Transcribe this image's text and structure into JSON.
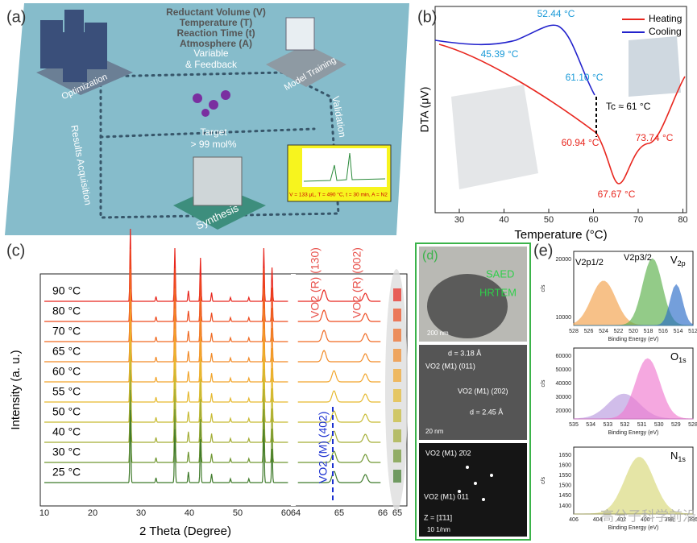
{
  "panel_a": {
    "label": "(a)",
    "parameters": [
      "Reductant Volume (V)",
      "Temperature (T)",
      "Reaction Time (t)",
      "Atmosphere (A)"
    ],
    "feedback": [
      "Variable",
      "& Feedback"
    ],
    "nodes": [
      "Optimization",
      "Model Training",
      "Validation",
      "Synthesis",
      "Results Acquisition"
    ],
    "target": [
      "Target",
      "> 99 mol%"
    ],
    "inset_caption": "V = 133 μL, T = 490 °C, t = 30 min, A = N2"
  },
  "panel_b": {
    "label": "(b)",
    "legend": [
      "Heating",
      "Cooling"
    ],
    "annotations": [
      "52.44 °C",
      "45.39 °C",
      "61.10 °C",
      "Tc ≈ 61 °C",
      "60.94 °C",
      "73.74 °C",
      "67.67 °C"
    ],
    "y_label": "DTA (μV)",
    "x_label": "Temperature (°C)",
    "x_ticks": [
      30,
      40,
      50,
      60,
      70,
      80
    ]
  },
  "panel_c": {
    "label": "(c)",
    "y_label": "Intensity (a. u.)",
    "x_label": "2  Theta (Degree)",
    "x_ticks_left": [
      10,
      20,
      30,
      40,
      50,
      60
    ],
    "x_ticks_right": [
      64,
      65,
      66
    ],
    "zoom_tick": "65",
    "temperatures": [
      "90 °C",
      "80 °C",
      "70 °C",
      "65 °C",
      "60 °C",
      "55 °C",
      "50 °C",
      "40 °C",
      "30 °C",
      "25 °C"
    ],
    "peaks": [
      "VO2 (R) (130)",
      "VO2 (R) (002)",
      "VO2 (M) (402)"
    ]
  },
  "panel_d": {
    "label": "(d)",
    "top": [
      "SAED",
      "HRTEM",
      "200 nm"
    ],
    "middle": [
      "d = 3.18 Å",
      "VO2 (M1) (011)",
      "VO2 (M1) (2̄02)",
      "d = 2.45 Å",
      "20 nm"
    ],
    "bottom": [
      "VO2 (M1) 2̄02",
      "VO2 (M1) 011",
      "Z = [1̄11]",
      "10 1/nm"
    ]
  },
  "panel_e": {
    "label": "(e)",
    "y_label": "c/s",
    "x_label": "Binding Energy (eV)",
    "plots": [
      {
        "title": [
          "V",
          "2p"
        ],
        "peaks": [
          "V2p1/2",
          "V2p3/2"
        ],
        "x_ticks": [
          528,
          526,
          524,
          522,
          520,
          518,
          516,
          514,
          512
        ],
        "y_ticks": [
          10000,
          20000
        ]
      },
      {
        "title": [
          "O",
          "1s"
        ],
        "peaks": [],
        "x_ticks": [
          535,
          534,
          533,
          532,
          531,
          530,
          529,
          528
        ],
        "y_ticks": [
          20000,
          30000,
          40000,
          50000,
          60000
        ]
      },
      {
        "title": [
          "N",
          "1s"
        ],
        "peaks": [],
        "x_ticks": [
          406,
          404,
          402,
          400,
          398,
          396
        ],
        "y_ticks": [
          1400,
          1450,
          1500,
          1550,
          1600,
          1650
        ]
      }
    ]
  },
  "watermark": "高分子科学前沿"
}
